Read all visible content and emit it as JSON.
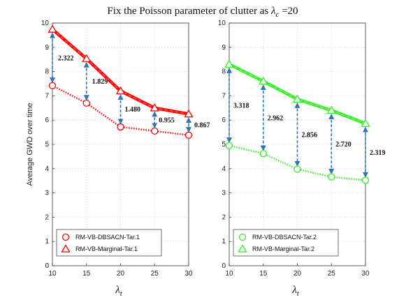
{
  "figure": {
    "title_prefix": "Fix the Poisson parameter of clutter as ",
    "title_symbol": "λ",
    "title_subscript": "c",
    "title_suffix": " =20",
    "shared_ylabel": "Average GWD over time",
    "shared_xlabel_symbol": "λ",
    "shared_xlabel_subscript": "t"
  },
  "chart_data": [
    {
      "type": "line",
      "title": "",
      "xlabel": "λt",
      "ylabel": "Average GWD over time",
      "x": [
        10,
        15,
        20,
        25,
        30
      ],
      "xlim": [
        10,
        30
      ],
      "ylim": [
        0,
        10
      ],
      "xticks": [
        "10",
        "15",
        "20",
        "25",
        "30"
      ],
      "yticks": [
        "0",
        "1",
        "2",
        "3",
        "4",
        "5",
        "6",
        "7",
        "8",
        "9",
        "10"
      ],
      "grid": true,
      "legend_position": "bottom-left",
      "series": [
        {
          "name": "RM-VB-DBSACN-Tar.1",
          "values": [
            7.42,
            6.7,
            5.72,
            5.55,
            5.38
          ],
          "color": "#ff0000",
          "marker": "circle",
          "line_style": "dotted"
        },
        {
          "name": "RM-VB-Marginal-Tar.1",
          "values": [
            9.74,
            8.53,
            7.2,
            6.5,
            6.25
          ],
          "color": "#ff0000",
          "marker": "triangle",
          "line_style": "solid-thick"
        }
      ],
      "annotations": [
        {
          "x": 10,
          "text": "2.322"
        },
        {
          "x": 15,
          "text": "1.829"
        },
        {
          "x": 20,
          "text": "1.480"
        },
        {
          "x": 25,
          "text": "0.955"
        },
        {
          "x": 30,
          "text": "0.867"
        }
      ],
      "arrow_color": "#2e75b6"
    },
    {
      "type": "line",
      "title": "",
      "xlabel": "λt",
      "ylabel": "",
      "x": [
        10,
        15,
        20,
        25,
        30
      ],
      "xlim": [
        10,
        30
      ],
      "ylim": [
        0,
        10
      ],
      "xticks": [
        "10",
        "15",
        "20",
        "25",
        "30"
      ],
      "yticks": [
        "0",
        "1",
        "2",
        "3",
        "4",
        "5",
        "6",
        "7",
        "8",
        "9",
        "10"
      ],
      "grid": true,
      "legend_position": "bottom-left",
      "series": [
        {
          "name": "RM-VB-DBSACN-Tar.2",
          "values": [
            4.95,
            4.62,
            3.98,
            3.66,
            3.52
          ],
          "color": "#33ee22",
          "marker": "circle",
          "line_style": "dotted"
        },
        {
          "name": "RM-VB-Marginal-Tar.2",
          "values": [
            8.3,
            7.6,
            6.86,
            6.4,
            5.86
          ],
          "color": "#33ee22",
          "marker": "triangle",
          "line_style": "solid-thick"
        }
      ],
      "annotations": [
        {
          "x": 10,
          "text": "3.318"
        },
        {
          "x": 15,
          "text": "2.962"
        },
        {
          "x": 20,
          "text": "2.856"
        },
        {
          "x": 25,
          "text": "2.720"
        },
        {
          "x": 30,
          "text": "2.319"
        }
      ],
      "arrow_color": "#2e75b6"
    }
  ]
}
